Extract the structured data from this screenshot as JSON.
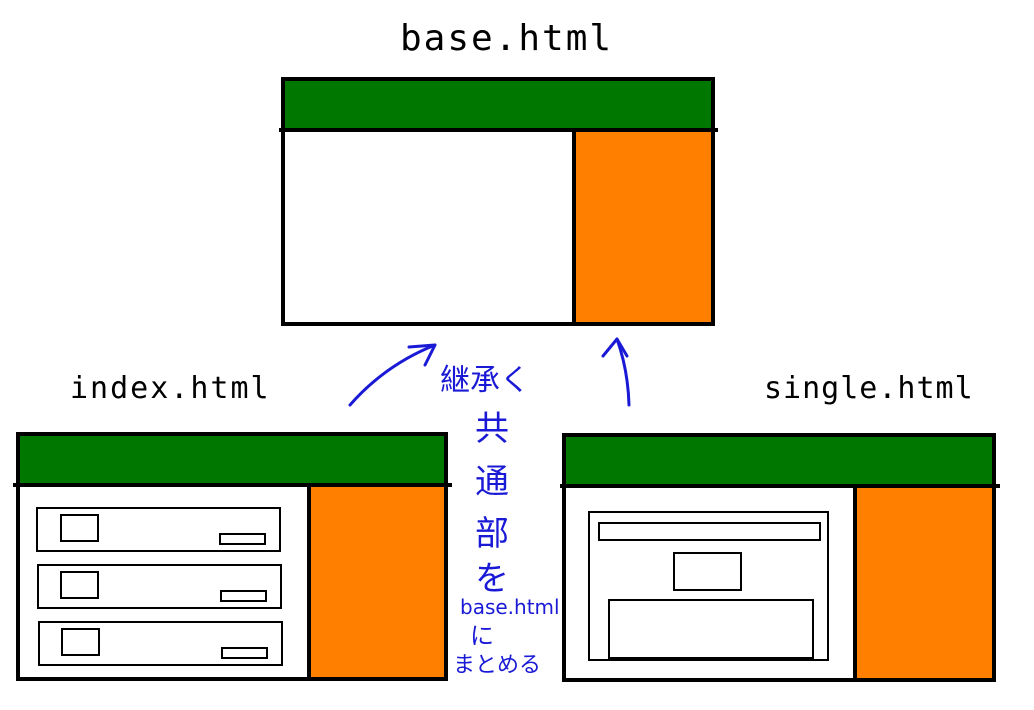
{
  "titles": {
    "base": "base.html",
    "index": "index.html",
    "single": "single.html"
  },
  "annotation": {
    "inherit": "継承く",
    "vertical_chars": [
      "共",
      "通",
      "部",
      "を"
    ],
    "target": "base.html",
    "particle": "に",
    "verb": "まとめる"
  },
  "colors": {
    "header": "#007800",
    "sidebar": "#ff8000",
    "outline": "#000000",
    "annotation": "#1a1ad6"
  }
}
